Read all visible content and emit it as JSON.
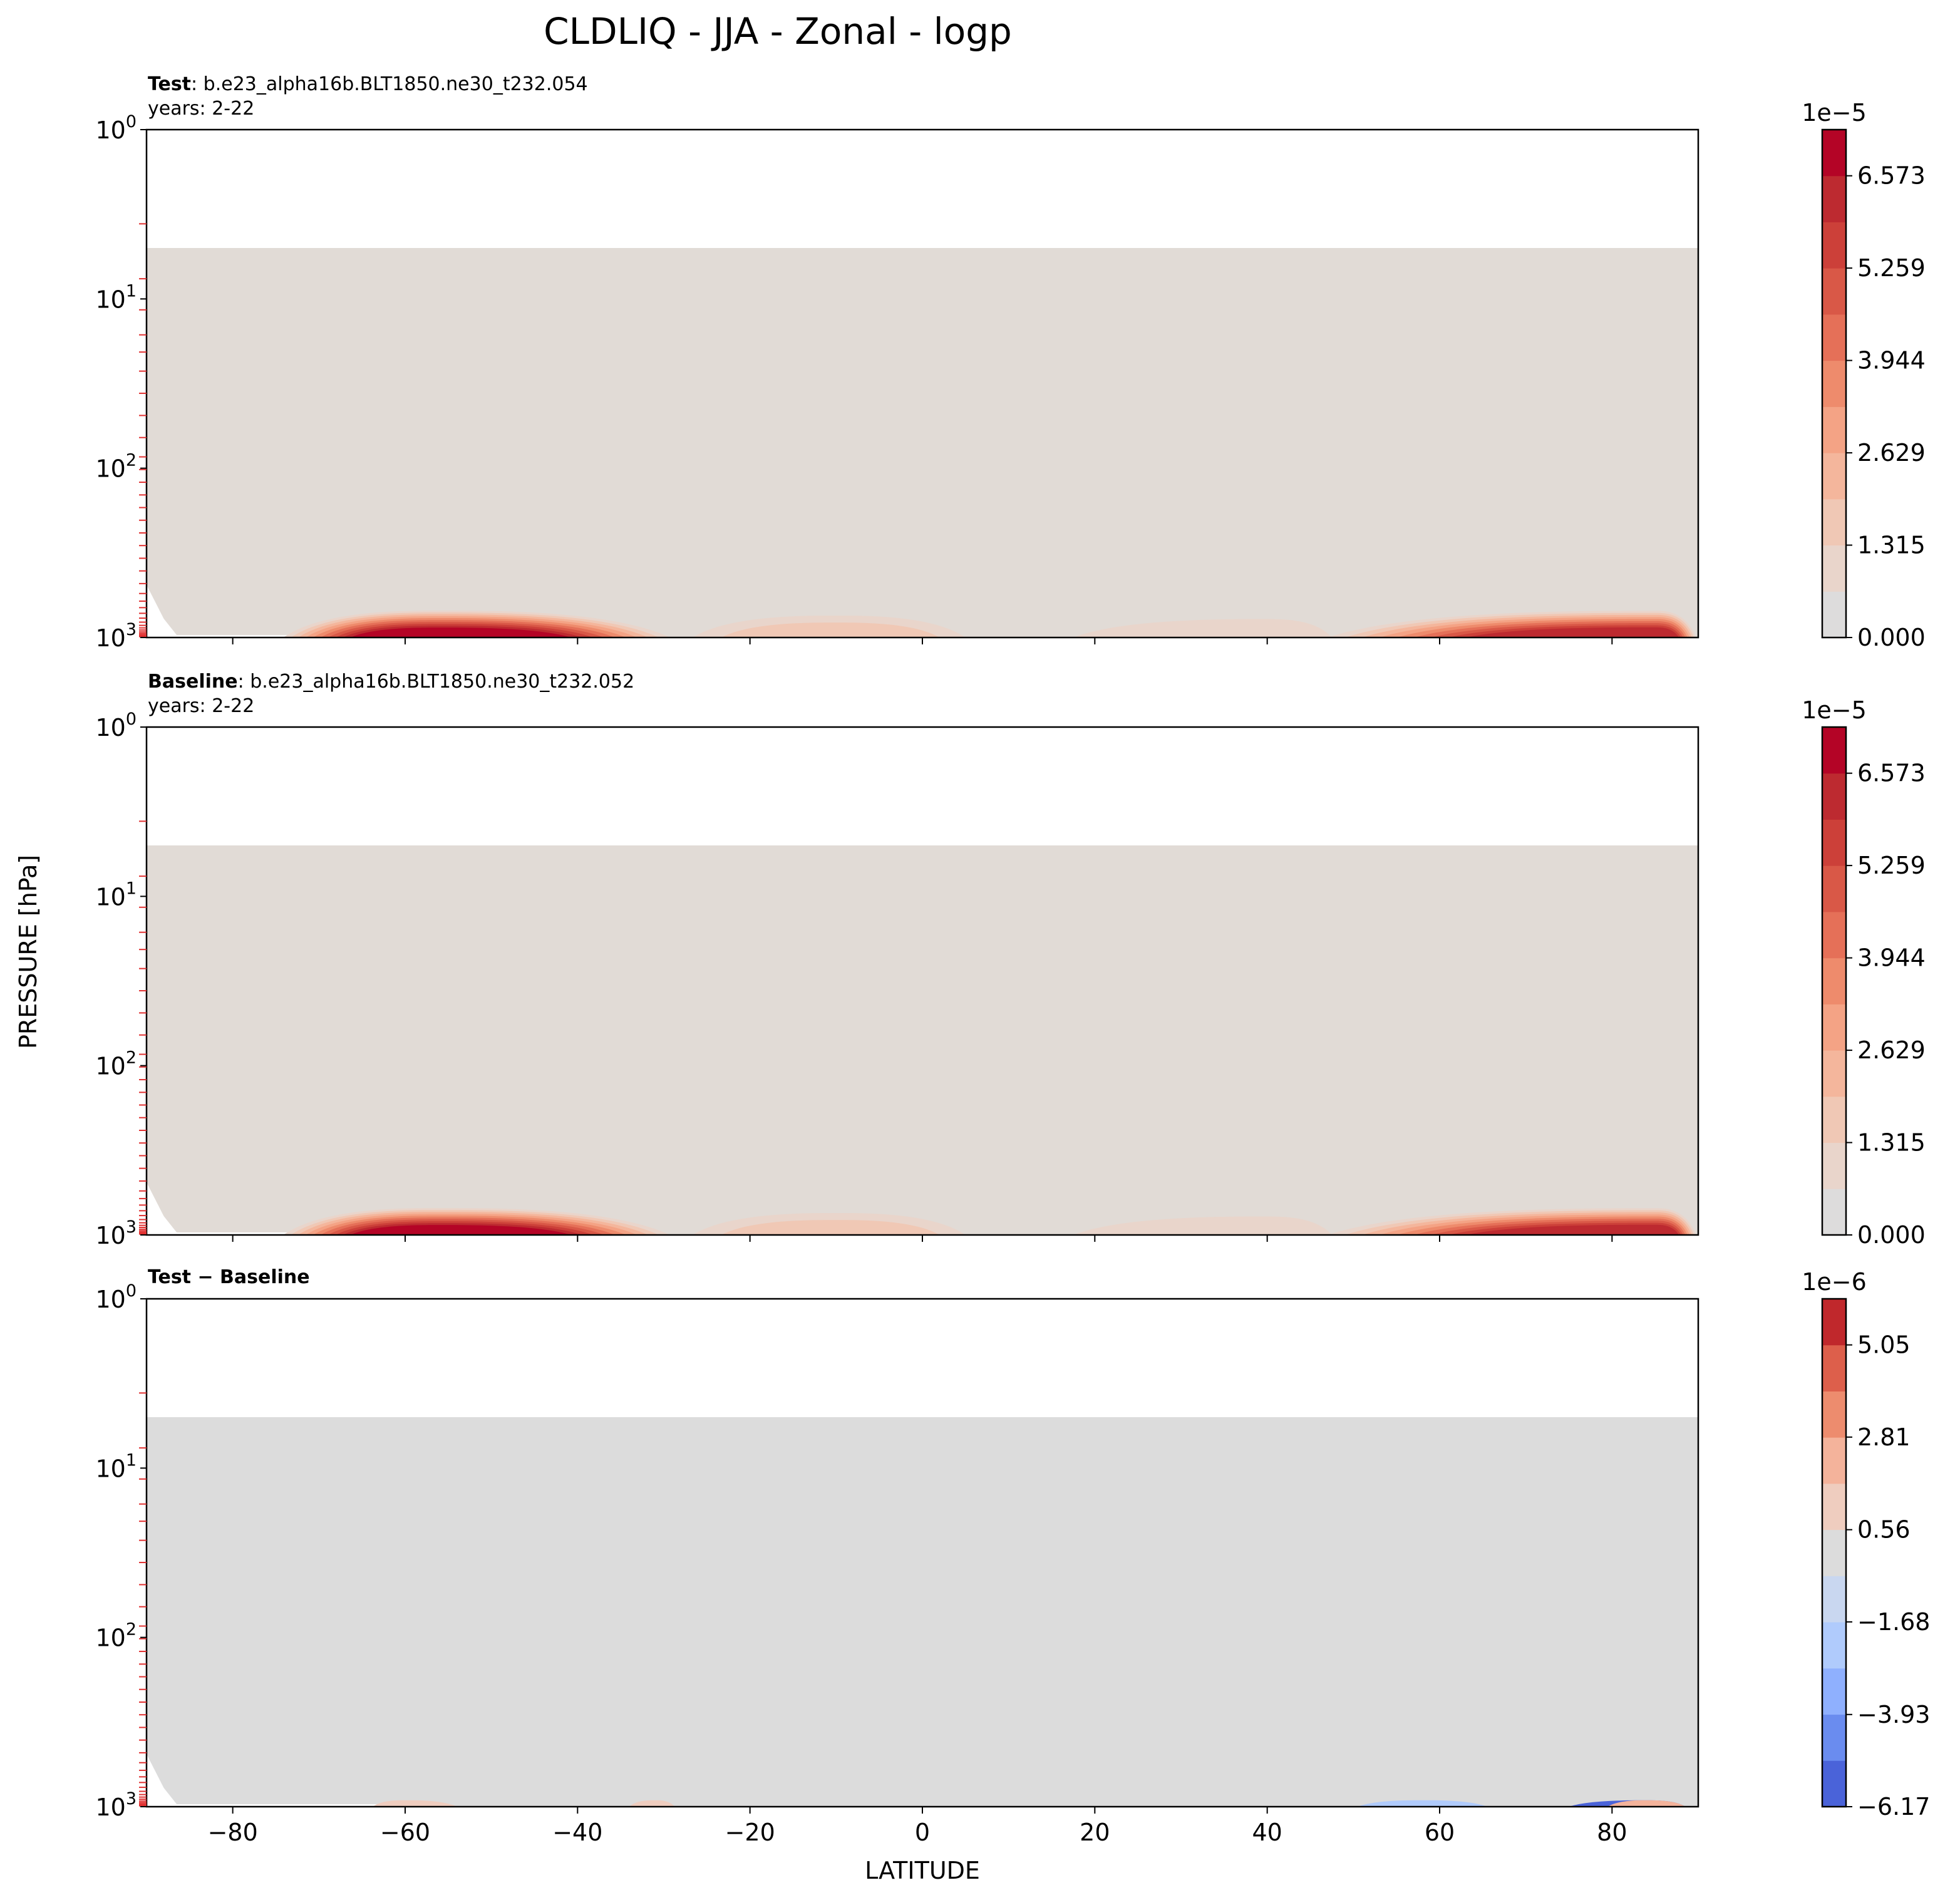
{
  "figure": {
    "title": "CLDLIQ - JJA - Zonal - logp",
    "ylabel": "PRESSURE [hPa]",
    "xlabel": "LATITUDE"
  },
  "colors": {
    "background_fill_abs": "#e1dbd6",
    "background_fill_diff": "#dcdcdc",
    "tick_red": "#e03030",
    "frame": "#000000"
  },
  "chart_data": [
    {
      "type": "heatmap",
      "id": "test",
      "title_bold": "Test",
      "title_rest": ": b.e23_alpha16b.BLT1850.ne30_t232.054",
      "subtitle": "years: 2-22",
      "x_range": [
        -90,
        90
      ],
      "y_range_hPa": [
        1,
        1000
      ],
      "y_scale": "log",
      "y_inverted": true,
      "x_ticks": [
        "−80",
        "−60",
        "−40",
        "−20",
        "0",
        "20",
        "40",
        "60",
        "80"
      ],
      "x_tick_values": [
        -80,
        -60,
        -40,
        -20,
        0,
        20,
        40,
        60,
        80
      ],
      "y_tick_values": [
        1,
        10,
        100,
        1000
      ],
      "y_tick_labels": [
        {
          "b": "10",
          "e": "0"
        },
        {
          "b": "10",
          "e": "1"
        },
        {
          "b": "10",
          "e": "2"
        },
        {
          "b": "10",
          "e": "3"
        }
      ],
      "model_levels_hPa": [
        3.6,
        7.6,
        11.6,
        16.3,
        20.6,
        26.7,
        36.1,
        48.8,
        65.9,
        85.7,
        101.8,
        121.0,
        143.8,
        170.8,
        202.9,
        241.1,
        286.4,
        340.3,
        404.2,
        480.2,
        549.6,
        609.8,
        666.2,
        719.5,
        768.4,
        811.5,
        847.7,
        877.6,
        902.8,
        925.0,
        944.4,
        961.1,
        975.6,
        988.4
      ],
      "filled_top_hPa": 5,
      "colorbar": {
        "exponent": "1e−5",
        "tick_labels": [
          "6.573",
          "5.259",
          "3.944",
          "2.629",
          "1.315",
          "0.000"
        ],
        "tick_values": [
          6.573,
          5.259,
          3.944,
          2.629,
          1.315,
          0.0
        ],
        "range": [
          0,
          7.23
        ],
        "levels": 11,
        "colors": [
          "#dddcdc",
          "#e9d5cb",
          "#f0c8b5",
          "#f4b69c",
          "#f4a385",
          "#ee8b6c",
          "#e57058",
          "#d95847",
          "#cc4039",
          "#bd2a30",
          "#b40426"
        ]
      },
      "features": [
        {
          "lat": [
            -75,
            -28
          ],
          "center": -56,
          "value": 6.8
        },
        {
          "lat": [
            -30,
            8
          ],
          "center": -10,
          "value": 1.8
        },
        {
          "lat": [
            10,
            50
          ],
          "center": 40,
          "value": 1.0
        },
        {
          "lat": [
            45,
            90
          ],
          "center": 85,
          "value": 6.2
        }
      ]
    },
    {
      "type": "heatmap",
      "id": "baseline",
      "title_bold": "Baseline",
      "title_rest": ": b.e23_alpha16b.BLT1850.ne30_t232.052",
      "subtitle": "years: 2-22",
      "x_range": [
        -90,
        90
      ],
      "y_range_hPa": [
        1,
        1000
      ],
      "y_scale": "log",
      "y_inverted": true,
      "x_ticks": [
        "−80",
        "−60",
        "−40",
        "−20",
        "0",
        "20",
        "40",
        "60",
        "80"
      ],
      "x_tick_values": [
        -80,
        -60,
        -40,
        -20,
        0,
        20,
        40,
        60,
        80
      ],
      "y_tick_values": [
        1,
        10,
        100,
        1000
      ],
      "y_tick_labels": [
        {
          "b": "10",
          "e": "0"
        },
        {
          "b": "10",
          "e": "1"
        },
        {
          "b": "10",
          "e": "2"
        },
        {
          "b": "10",
          "e": "3"
        }
      ],
      "model_levels_hPa": [
        3.6,
        7.6,
        11.6,
        16.3,
        20.6,
        26.7,
        36.1,
        48.8,
        65.9,
        85.7,
        101.8,
        121.0,
        143.8,
        170.8,
        202.9,
        241.1,
        286.4,
        340.3,
        404.2,
        480.2,
        549.6,
        609.8,
        666.2,
        719.5,
        768.4,
        811.5,
        847.7,
        877.6,
        902.8,
        925.0,
        944.4,
        961.1,
        975.6,
        988.4
      ],
      "filled_top_hPa": 5,
      "colorbar": {
        "exponent": "1e−5",
        "tick_labels": [
          "6.573",
          "5.259",
          "3.944",
          "2.629",
          "1.315",
          "0.000"
        ],
        "tick_values": [
          6.573,
          5.259,
          3.944,
          2.629,
          1.315,
          0.0
        ],
        "range": [
          0,
          7.23
        ],
        "levels": 11,
        "colors": [
          "#dddcdc",
          "#e9d5cb",
          "#f0c8b5",
          "#f4b69c",
          "#f4a385",
          "#ee8b6c",
          "#e57058",
          "#d95847",
          "#cc4039",
          "#bd2a30",
          "#b40426"
        ]
      },
      "features": [
        {
          "lat": [
            -75,
            -28
          ],
          "center": -56,
          "value": 6.8
        },
        {
          "lat": [
            -30,
            8
          ],
          "center": -10,
          "value": 1.8
        },
        {
          "lat": [
            10,
            50
          ],
          "center": 40,
          "value": 1.0
        },
        {
          "lat": [
            45,
            90
          ],
          "center": 85,
          "value": 6.2
        }
      ]
    },
    {
      "type": "heatmap",
      "id": "difference",
      "title_bold": "Test − Baseline",
      "title_rest": "",
      "subtitle": "",
      "x_range": [
        -90,
        90
      ],
      "y_range_hPa": [
        1,
        1000
      ],
      "y_scale": "log",
      "y_inverted": true,
      "x_ticks": [
        "−80",
        "−60",
        "−40",
        "−20",
        "0",
        "20",
        "40",
        "60",
        "80"
      ],
      "x_tick_values": [
        -80,
        -60,
        -40,
        -20,
        0,
        20,
        40,
        60,
        80
      ],
      "y_tick_values": [
        1,
        10,
        100,
        1000
      ],
      "y_tick_labels": [
        {
          "b": "10",
          "e": "0"
        },
        {
          "b": "10",
          "e": "1"
        },
        {
          "b": "10",
          "e": "2"
        },
        {
          "b": "10",
          "e": "3"
        }
      ],
      "model_levels_hPa": [
        3.6,
        7.6,
        11.6,
        16.3,
        20.6,
        26.7,
        36.1,
        48.8,
        65.9,
        85.7,
        101.8,
        121.0,
        143.8,
        170.8,
        202.9,
        241.1,
        286.4,
        340.3,
        404.2,
        480.2,
        549.6,
        609.8,
        666.2,
        719.5,
        768.4,
        811.5,
        847.7,
        877.6,
        902.8,
        925.0,
        944.4,
        961.1,
        975.6,
        988.4
      ],
      "filled_top_hPa": 5,
      "colorbar": {
        "exponent": "1e−6",
        "tick_labels": [
          "5.05",
          "2.81",
          "0.56",
          "−1.68",
          "−3.93",
          "−6.17"
        ],
        "tick_values": [
          5.05,
          2.81,
          0.56,
          -1.68,
          -3.93,
          -6.17
        ],
        "range": [
          -6.17,
          6.17
        ],
        "levels": 11,
        "colors": [
          "#4a63d9",
          "#6a8cef",
          "#8fb0fe",
          "#b0cbfc",
          "#c9d7f0",
          "#dcdcdc",
          "#efcdbf",
          "#f4b39b",
          "#ed8c6e",
          "#dd5f4b",
          "#c0282c"
        ]
      },
      "features": [
        {
          "lat": [
            -65,
            -52
          ],
          "center": -60,
          "value": 1.6
        },
        {
          "lat": [
            -35,
            -28
          ],
          "center": -31,
          "value": 1.2
        },
        {
          "lat": [
            48,
            68
          ],
          "center": 58,
          "value": -2.6
        },
        {
          "lat": [
            72,
            90
          ],
          "center": 84,
          "value": -5.5
        },
        {
          "lat": [
            78,
            90
          ],
          "center": 84,
          "value": 1.8
        }
      ]
    }
  ]
}
